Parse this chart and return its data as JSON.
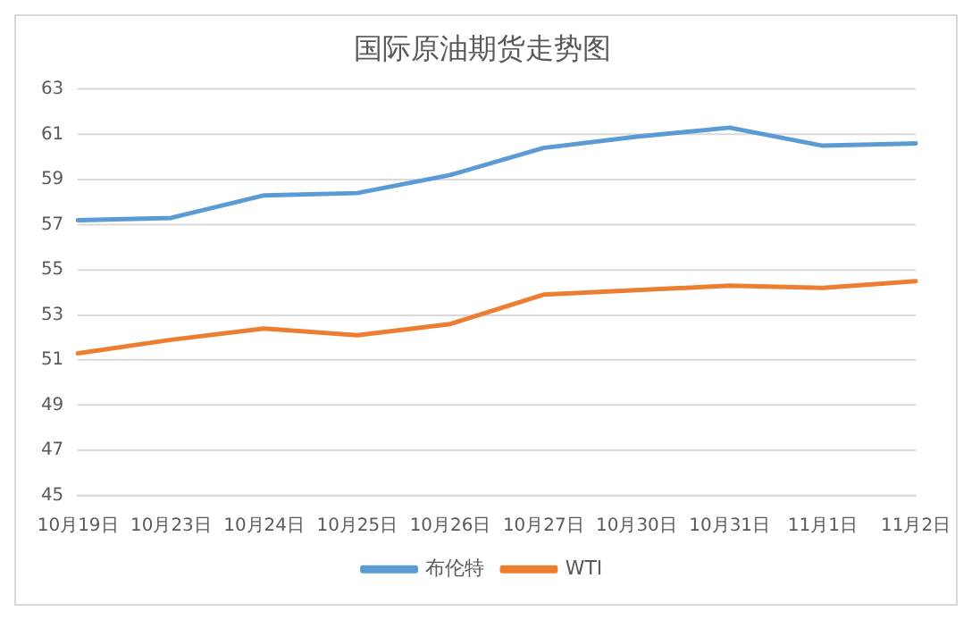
{
  "chart_data": {
    "type": "line",
    "title": "国际原油期货走势图",
    "categories": [
      "10月19日",
      "10月23日",
      "10月24日",
      "10月25日",
      "10月26日",
      "10月27日",
      "10月30日",
      "10月31日",
      "11月1日",
      "11月2日"
    ],
    "series": [
      {
        "name": "布伦特",
        "color": "#5b9bd5",
        "values": [
          57.2,
          57.3,
          58.3,
          58.4,
          59.2,
          60.4,
          60.9,
          61.3,
          60.5,
          60.6
        ]
      },
      {
        "name": "WTI",
        "color": "#ed7d31",
        "values": [
          51.3,
          51.9,
          52.4,
          52.1,
          52.6,
          53.9,
          54.1,
          54.3,
          54.2,
          54.5
        ]
      }
    ],
    "ylim": [
      45,
      63
    ],
    "yticks": [
      45,
      47,
      49,
      51,
      53,
      55,
      57,
      59,
      61,
      63
    ],
    "grid": "y",
    "legend": "bottom",
    "marker": "none",
    "line_style": "solid"
  }
}
